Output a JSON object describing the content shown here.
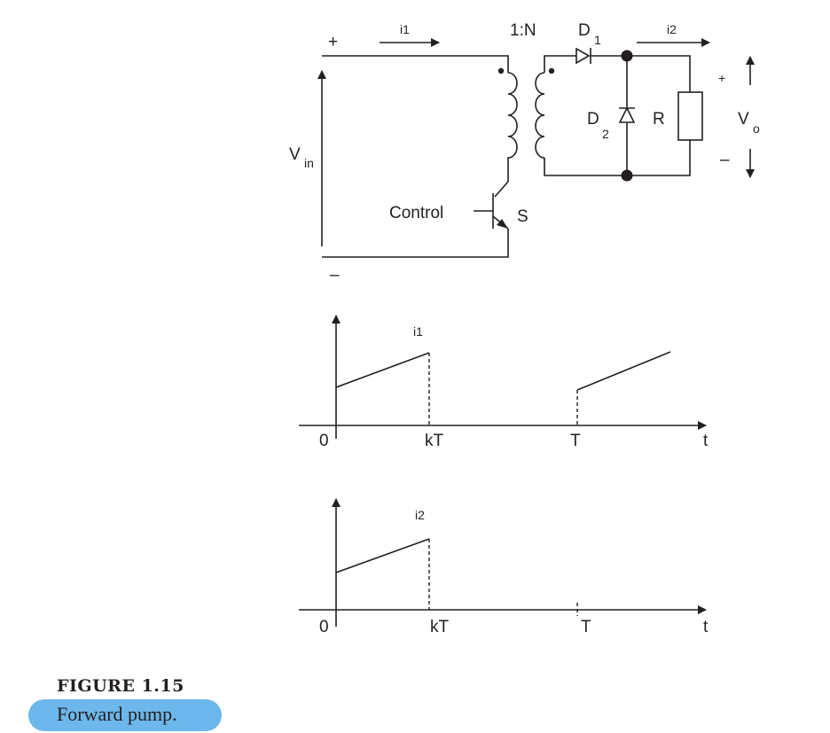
{
  "circuit": {
    "current_in": "i1",
    "current_out": "i2",
    "turns_ratio": "1:N",
    "diode1": "D",
    "diode1_sub": "1",
    "diode2": "D",
    "diode2_sub": "2",
    "resistor": "R",
    "input_voltage": "V",
    "input_voltage_sub": "in",
    "output_voltage": "V",
    "output_voltage_sub": "o",
    "plus": "+",
    "minus": "–",
    "control": "Control",
    "switch": "S"
  },
  "plot_i1": {
    "ylabel": "i1",
    "origin": "0",
    "tick_kT": "kT",
    "tick_T": "T",
    "xlabel": "t"
  },
  "plot_i2": {
    "ylabel": "i2",
    "origin": "0",
    "tick_kT": "kT",
    "tick_T": "T",
    "xlabel": "t"
  },
  "caption": {
    "title": "FIGURE 1.15",
    "text": "Forward pump."
  }
}
